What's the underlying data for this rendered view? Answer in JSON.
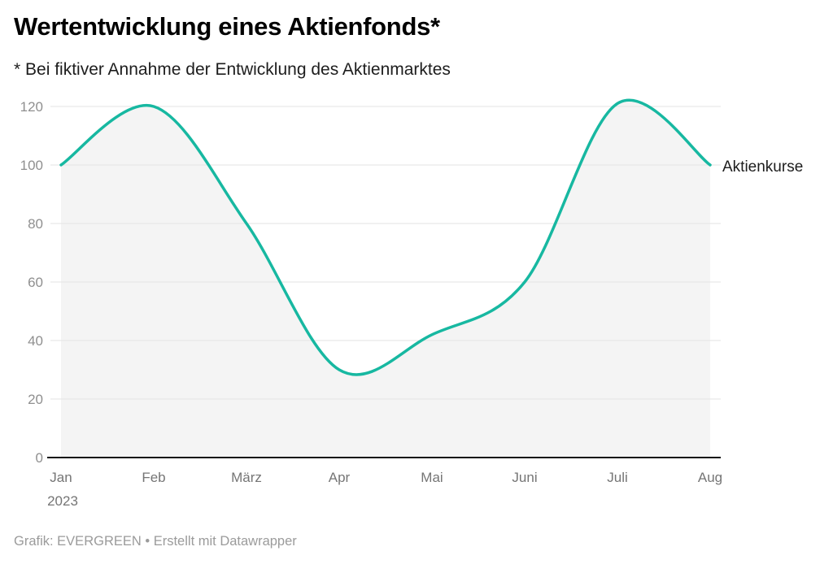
{
  "header": {
    "title": "Wertentwicklung eines Aktienfonds*",
    "subtitle": "* Bei fiktiver Annahme der Entwicklung des Aktienmarktes"
  },
  "chart_data": {
    "type": "area",
    "title": "Wertentwicklung eines Aktienfonds*",
    "subtitle": "* Bei fiktiver Annahme der Entwicklung des Aktienmarktes",
    "categories": [
      "Jan 2023",
      "Feb",
      "März",
      "Apr",
      "Mai",
      "Juni",
      "Juli",
      "Aug"
    ],
    "x_ticks": [
      {
        "label": "Jan",
        "sub": "2023"
      },
      {
        "label": "Feb"
      },
      {
        "label": "März"
      },
      {
        "label": "Apr"
      },
      {
        "label": "Mai"
      },
      {
        "label": "Juni"
      },
      {
        "label": "Juli"
      },
      {
        "label": "Aug"
      }
    ],
    "series": [
      {
        "name": "Aktienkurse",
        "values": [
          100,
          120,
          80,
          30,
          42,
          60,
          121,
          100
        ]
      }
    ],
    "series_label": "Aktienkurse",
    "xlabel": "",
    "ylabel": "",
    "ylim": [
      0,
      120
    ],
    "yticks": [
      0,
      20,
      40,
      60,
      80,
      100,
      120
    ],
    "grid": true,
    "smoothing": "curved",
    "legend_position": "end-of-line-right",
    "colors": {
      "line": "#17b8a1",
      "area": "#f4f4f4",
      "grid": "#e3e3e3",
      "baseline": "#141414",
      "y_tick_text": "#8f8f8f",
      "x_tick_text": "#757575",
      "label_text": "#1d1d1d"
    }
  },
  "footer": {
    "text": "Grafik: EVERGREEN • Erstellt mit Datawrapper"
  }
}
